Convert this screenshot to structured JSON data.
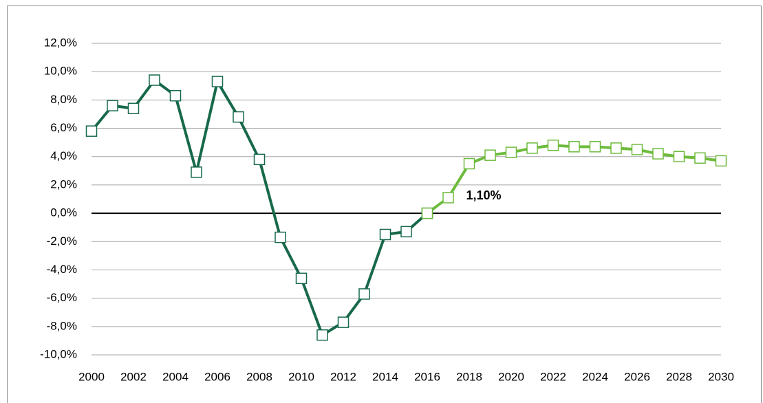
{
  "chart_data": {
    "type": "line",
    "xlim": [
      2000,
      2030
    ],
    "xticks": [
      2000,
      2002,
      2004,
      2006,
      2008,
      2010,
      2012,
      2014,
      2016,
      2018,
      2020,
      2022,
      2024,
      2026,
      2028,
      2030
    ],
    "ylim": [
      -10,
      12
    ],
    "yticks": [
      {
        "value": -10,
        "label": "-10,0%"
      },
      {
        "value": -8,
        "label": "-8,0%"
      },
      {
        "value": -6,
        "label": "-6,0%"
      },
      {
        "value": -4,
        "label": "-4,0%"
      },
      {
        "value": -2,
        "label": "-2,0%"
      },
      {
        "value": 0,
        "label": "0,0%"
      },
      {
        "value": 2,
        "label": "2,0%"
      },
      {
        "value": 4,
        "label": "4,0%"
      },
      {
        "value": 6,
        "label": "6,0%"
      },
      {
        "value": 8,
        "label": "8,0%"
      },
      {
        "value": 10,
        "label": "10,0%"
      },
      {
        "value": 12,
        "label": "12,0%"
      }
    ],
    "grid": true,
    "series": [
      {
        "color": "#17694a",
        "x": [
          2000,
          2001,
          2002,
          2003,
          2004,
          2005,
          2006,
          2007,
          2008,
          2009,
          2010,
          2011,
          2012,
          2013,
          2014,
          2015,
          2016
        ],
        "values": [
          5.8,
          7.6,
          7.4,
          9.4,
          8.3,
          2.9,
          9.3,
          6.8,
          3.8,
          -1.7,
          -4.6,
          -8.6,
          -7.7,
          -5.7,
          -1.5,
          -1.3,
          0.0
        ]
      },
      {
        "color": "#6dbb3c",
        "x": [
          2016,
          2017,
          2018,
          2019,
          2020,
          2021,
          2022,
          2023,
          2024,
          2025,
          2026,
          2027,
          2028,
          2029,
          2030
        ],
        "values": [
          0.0,
          1.1,
          3.5,
          4.1,
          4.3,
          4.6,
          4.8,
          4.7,
          4.7,
          4.6,
          4.5,
          4.2,
          4.0,
          3.9,
          3.7
        ]
      }
    ],
    "annotations": [
      {
        "text": "1,10%",
        "x": 2017,
        "y": 1.1,
        "color": "#e8191e"
      }
    ]
  }
}
